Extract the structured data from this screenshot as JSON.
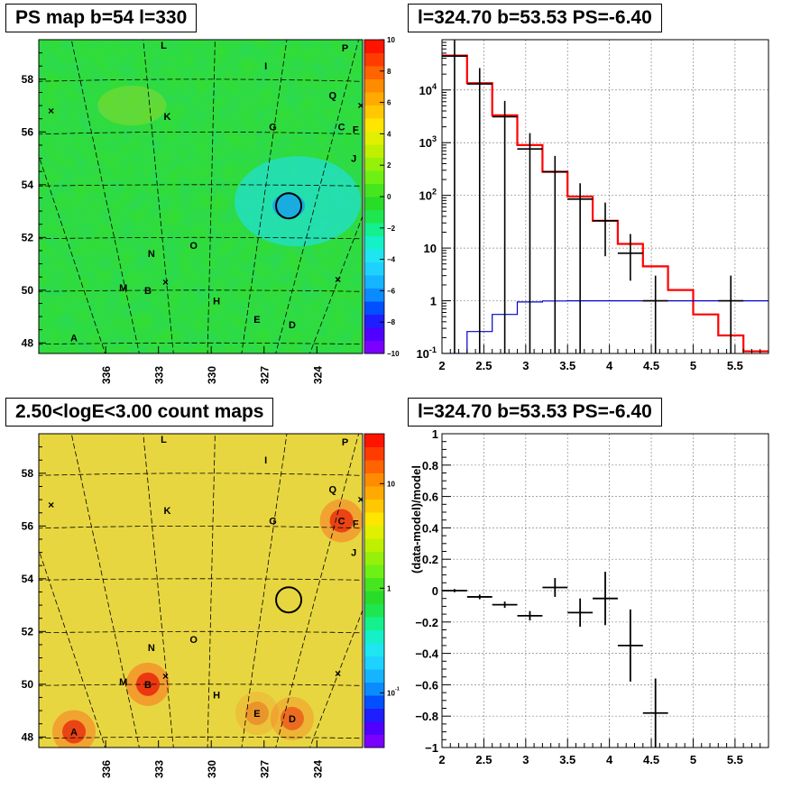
{
  "panels": {
    "map_top_title": "PS map b=54 l=330",
    "spec_top_title": "l=324.70 b=53.53 PS=-6.40",
    "map_bottom_title": "2.50<logE<3.00 count maps",
    "resid_title": "l=324.70 b=53.53 PS=-6.40"
  },
  "colors": {
    "model_line": "#ff0000",
    "background_line": "#0000cc",
    "data_points": "#000000",
    "ps_map_base": "#33dd33",
    "count_map_base": "#e8d640"
  },
  "chart_data": [
    {
      "id": "ps_map",
      "type": "heatmap",
      "title": "PS map b=54 l=330",
      "x_ticks": [
        "336",
        "333",
        "330",
        "327",
        "324"
      ],
      "x_tick_values": [
        336,
        333,
        330,
        327,
        324
      ],
      "xlim": [
        339.8,
        321.4
      ],
      "y_ticks": [
        "48",
        "50",
        "52",
        "54",
        "56",
        "58"
      ],
      "y_tick_values": [
        48,
        50,
        52,
        54,
        56,
        58
      ],
      "ylim": [
        47.6,
        59.5
      ],
      "colorbar": {
        "scale": "linear",
        "range": [
          -10,
          10
        ],
        "ticks": [
          "−10",
          "−8",
          "−6",
          "−4",
          "−2",
          "0",
          "2",
          "4",
          "6",
          "8",
          "10"
        ],
        "tick_values": [
          -10,
          -8,
          -6,
          -4,
          -2,
          0,
          2,
          4,
          6,
          8,
          10
        ]
      },
      "source_labels": [
        {
          "text": "L",
          "l": 332.7,
          "b": 59.3
        },
        {
          "text": "P",
          "l": 322.4,
          "b": 59.2
        },
        {
          "text": "I",
          "l": 326.9,
          "b": 58.5
        },
        {
          "text": "Q",
          "l": 323.1,
          "b": 57.4
        },
        {
          "text": "K",
          "l": 332.5,
          "b": 56.6
        },
        {
          "text": "G",
          "l": 326.5,
          "b": 56.2
        },
        {
          "text": "C",
          "l": 322.6,
          "b": 56.2
        },
        {
          "text": "F",
          "l": 321.8,
          "b": 56.1
        },
        {
          "text": "J",
          "l": 321.9,
          "b": 55.0
        },
        {
          "text": "O",
          "l": 331.0,
          "b": 51.7
        },
        {
          "text": "N",
          "l": 333.4,
          "b": 51.4
        },
        {
          "text": "M",
          "l": 335.0,
          "b": 50.1
        },
        {
          "text": "B",
          "l": 333.6,
          "b": 50.0
        },
        {
          "text": "H",
          "l": 329.7,
          "b": 49.6
        },
        {
          "text": "E",
          "l": 327.4,
          "b": 48.9
        },
        {
          "text": "D",
          "l": 325.4,
          "b": 48.7
        },
        {
          "text": "A",
          "l": 337.8,
          "b": 48.2
        }
      ],
      "markers": [
        {
          "type": "x",
          "l": 339.1,
          "b": 56.8
        },
        {
          "type": "x",
          "l": 321.5,
          "b": 57.0
        },
        {
          "type": "x",
          "l": 332.6,
          "b": 50.3
        },
        {
          "type": "x",
          "l": 322.8,
          "b": 50.4
        }
      ],
      "target_circle": {
        "l": 325.6,
        "b": 53.2
      }
    },
    {
      "id": "spectrum",
      "type": "line",
      "title": "l=324.70 b=53.53 PS=-6.40",
      "x_scale": "linear",
      "y_scale": "log",
      "xlim": [
        2,
        5.9
      ],
      "ylim": [
        0.1,
        90000
      ],
      "x_ticks": [
        "2",
        "2.5",
        "3",
        "3.5",
        "4",
        "4.5",
        "5",
        "5.5"
      ],
      "x_tick_values": [
        2,
        2.5,
        3,
        3.5,
        4,
        4.5,
        5,
        5.5
      ],
      "y_ticks": [
        "10^-1",
        "1",
        "10",
        "10^2",
        "10^3",
        "10^4"
      ],
      "y_tick_values": [
        0.1,
        1,
        10,
        100,
        1000,
        10000
      ],
      "bin_edges": [
        2.0,
        2.3,
        2.6,
        2.9,
        3.2,
        3.5,
        3.8,
        4.1,
        4.4,
        4.7,
        5.0,
        5.3,
        5.6,
        5.9
      ],
      "series": [
        {
          "name": "model",
          "color": "#ff0000",
          "values": [
            45000,
            13500,
            3300,
            900,
            280,
            95,
            33,
            12,
            4.5,
            1.6,
            0.55,
            0.22,
            0.11
          ]
        },
        {
          "name": "background",
          "color": "#0000cc",
          "values": [
            0.095,
            0.26,
            0.55,
            0.95,
            0.99,
            1.0,
            1.0,
            1.0,
            1.0,
            1.0,
            1.0,
            1.0,
            1.0
          ]
        },
        {
          "name": "data",
          "color": "#000000",
          "x": [
            2.15,
            2.45,
            2.75,
            3.05,
            3.35,
            3.65,
            3.95,
            4.25,
            4.55,
            5.45
          ],
          "y": [
            44000,
            13000,
            3100,
            760,
            280,
            85,
            33,
            8,
            1,
            1
          ],
          "yerr_low": [
            44000,
            13000,
            3100,
            760,
            280,
            85,
            26,
            5.6,
            0.9,
            0.9
          ],
          "yerr_high": [
            44000,
            13000,
            3100,
            760,
            280,
            85,
            40,
            10.5,
            2,
            2
          ]
        }
      ]
    },
    {
      "id": "count_map",
      "type": "heatmap",
      "title": "2.50<logE<3.00 count maps",
      "x_ticks": [
        "336",
        "333",
        "330",
        "327",
        "324"
      ],
      "x_tick_values": [
        336,
        333,
        330,
        327,
        324
      ],
      "xlim": [
        339.8,
        321.4
      ],
      "y_ticks": [
        "48",
        "50",
        "52",
        "54",
        "56",
        "58"
      ],
      "y_tick_values": [
        48,
        50,
        52,
        54,
        56,
        58
      ],
      "ylim": [
        47.6,
        59.5
      ],
      "colorbar": {
        "scale": "log",
        "range": [
          0.03,
          30
        ],
        "ticks": [
          "10^-1",
          "1",
          "10"
        ],
        "tick_values": [
          0.1,
          1,
          10
        ]
      },
      "bright_sources": [
        {
          "l": 322.6,
          "b": 56.2,
          "amp": 0.9
        },
        {
          "l": 333.6,
          "b": 50.0,
          "amp": 1.0
        },
        {
          "l": 337.8,
          "b": 48.2,
          "amp": 0.9
        },
        {
          "l": 325.4,
          "b": 48.7,
          "amp": 0.6
        },
        {
          "l": 327.4,
          "b": 48.9,
          "amp": 0.35
        }
      ],
      "target_circle": {
        "l": 325.6,
        "b": 53.2
      }
    },
    {
      "id": "residuals",
      "type": "scatter",
      "title": "l=324.70 b=53.53 PS=-6.40",
      "ylabel": "(data-model)/model",
      "xlim": [
        2,
        5.9
      ],
      "ylim": [
        -1,
        1
      ],
      "x_ticks": [
        "2",
        "2.5",
        "3",
        "3.5",
        "4",
        "4.5",
        "5",
        "5.5"
      ],
      "x_tick_values": [
        2,
        2.5,
        3,
        3.5,
        4,
        4.5,
        5,
        5.5
      ],
      "y_ticks": [
        "−1",
        "−0.8",
        "−0.6",
        "−0.4",
        "−0.2",
        "0",
        "0.2",
        "0.4",
        "0.6",
        "0.8",
        "1"
      ],
      "y_tick_values": [
        -1,
        -0.8,
        -0.6,
        -0.4,
        -0.2,
        0,
        0.2,
        0.4,
        0.6,
        0.8,
        1
      ],
      "series": [
        {
          "name": "residual",
          "x": [
            2.15,
            2.45,
            2.75,
            3.05,
            3.35,
            3.65,
            3.95,
            4.25,
            4.55
          ],
          "xerr": [
            0.15,
            0.15,
            0.15,
            0.15,
            0.15,
            0.15,
            0.15,
            0.15,
            0.15
          ],
          "y": [
            0.0,
            -0.04,
            -0.09,
            -0.16,
            0.02,
            -0.14,
            -0.05,
            -0.35,
            -0.78
          ],
          "yerr": [
            0.01,
            0.015,
            0.02,
            0.03,
            0.06,
            0.09,
            0.17,
            0.23,
            0.22
          ]
        }
      ]
    }
  ]
}
